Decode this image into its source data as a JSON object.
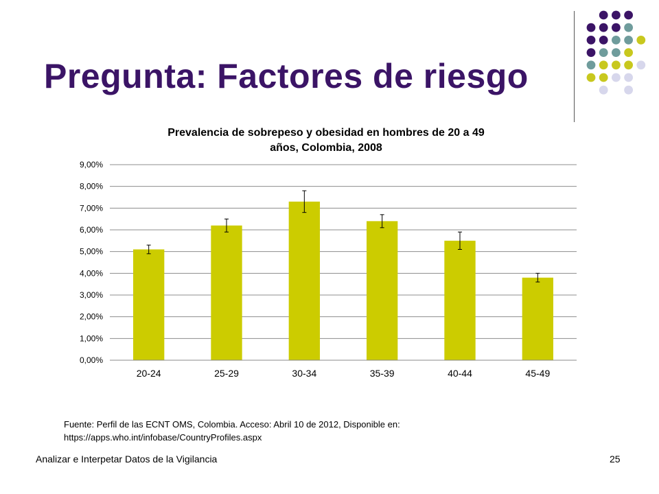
{
  "slide": {
    "title": "Pregunta: Factores de riesgo",
    "source_line1": "Fuente: Perfil de las ECNT OMS, Colombia. Acceso: Abril 10 de 2012, Disponible en:",
    "source_line2": "https://apps.who.int/infobase/CountryProfiles.aspx",
    "footer": "Analizar e Interpetar Datos de la Vigilancia",
    "page_number": "25"
  },
  "colors": {
    "title": "#3b1466",
    "bar": "#cccc00",
    "dark_purple": "#3b1466",
    "teal": "#6f9c9c",
    "olive": "#c8c81e",
    "lavender": "#d7d7ec"
  },
  "chart_data": {
    "type": "bar",
    "title_line1": "Prevalencia de sobrepeso y obesidad en hombres de 20 a 49",
    "title_line2": "años, Colombia, 2008",
    "categories": [
      "20-24",
      "25-29",
      "30-34",
      "35-39",
      "40-44",
      "45-49"
    ],
    "values": [
      5.1,
      6.2,
      7.3,
      6.4,
      5.5,
      3.8
    ],
    "error_low": [
      4.9,
      5.9,
      6.8,
      6.1,
      5.1,
      3.6
    ],
    "error_high": [
      5.3,
      6.5,
      7.8,
      6.7,
      5.9,
      4.0
    ],
    "ylim": [
      0,
      9
    ],
    "yticks": [
      0,
      1,
      2,
      3,
      4,
      5,
      6,
      7,
      8,
      9
    ],
    "ytick_labels": [
      "0,00%",
      "1,00%",
      "2,00%",
      "3,00%",
      "4,00%",
      "5,00%",
      "6,00%",
      "7,00%",
      "8,00%",
      "9,00%"
    ],
    "grid": true,
    "legend": "none"
  }
}
